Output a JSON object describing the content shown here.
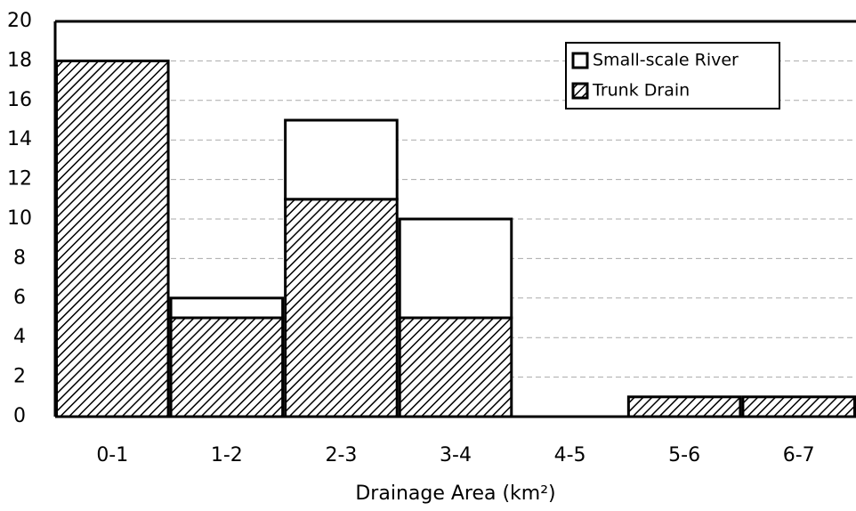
{
  "chart_data": {
    "type": "stacked_bar",
    "x_label": "Drainage Area (km²)",
    "categories": [
      "0-1",
      "1-2",
      "2-3",
      "3-4",
      "4-5",
      "5-6",
      "6-7"
    ],
    "series": [
      {
        "name": "Small-scale River",
        "color": "#ffffff",
        "pattern": "none",
        "values": [
          0,
          1,
          4,
          5,
          0,
          0,
          0
        ]
      },
      {
        "name": "Trunk Drain",
        "color": "#000000",
        "pattern": "hatch",
        "values": [
          18,
          5,
          11,
          5,
          0,
          1,
          1
        ]
      }
    ],
    "ylim": [
      0,
      20
    ],
    "yticks": [
      0,
      2,
      4,
      6,
      8,
      10,
      12,
      14,
      16,
      18,
      20
    ],
    "grid": true,
    "legend": "upper right"
  }
}
